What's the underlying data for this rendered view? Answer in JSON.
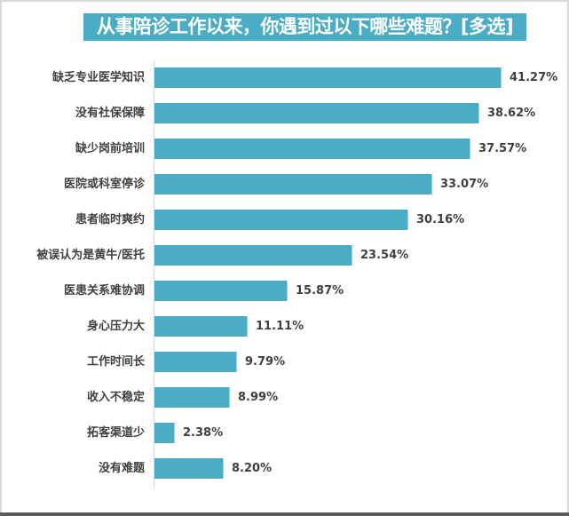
{
  "chart_data": {
    "type": "bar",
    "orientation": "horizontal",
    "title": "从事陪诊工作以来，你遇到过以下哪些难题？[多选]",
    "xlabel": "",
    "ylabel": "",
    "grid": false,
    "legend": null,
    "value_format": "percent",
    "bar_color": "#4bacc6",
    "title_bg_color": "#4bacc6",
    "categories": [
      "缺乏专业医学知识",
      "没有社保保障",
      "缺少岗前培训",
      "医院或科室停诊",
      "患者临时爽约",
      "被误认为是黄牛/医托",
      "医患关系难协调",
      "身心压力大",
      "工作时间长",
      "收入不稳定",
      "拓客渠道少",
      "没有难题"
    ],
    "values": [
      41.27,
      38.62,
      37.57,
      33.07,
      30.16,
      23.54,
      15.87,
      11.11,
      9.79,
      8.99,
      2.38,
      8.2
    ],
    "value_labels": [
      "41.27%",
      "38.62%",
      "37.57%",
      "33.07%",
      "30.16%",
      "23.54%",
      "15.87%",
      "11.11%",
      "9.79%",
      "8.99%",
      "2.38%",
      "8.20%"
    ]
  }
}
